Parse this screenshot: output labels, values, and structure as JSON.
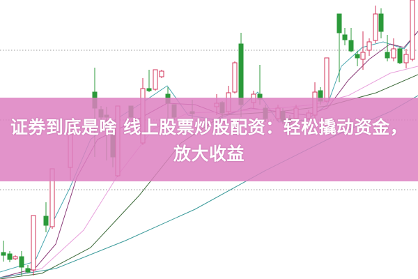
{
  "banner": {
    "title": "证券到底是啥 线上股票炒股配资：轻松撬动资金，放大收益",
    "color": "#dd80c1"
  },
  "chart": {
    "type": "candlestick",
    "up_color": "#d2335a",
    "down_color": "#2b9a3a",
    "grid": "dotted horizontal"
  }
}
